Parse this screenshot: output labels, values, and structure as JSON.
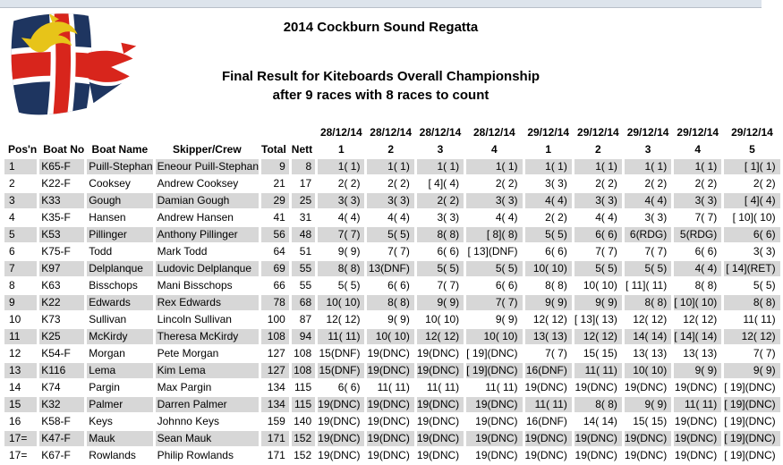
{
  "header": {
    "event_title": "2014 Cockburn Sound Regatta",
    "result_title": "Final Result for Kiteboards Overall Championship",
    "result_subtitle": "after 9 races with 8 races to count"
  },
  "colors": {
    "row_shade": "#d7d7d7",
    "topbar_bg": "#dde4ec",
    "topbar_border": "#b9c0c9",
    "flag_navy": "#1e3560",
    "flag_red": "#d8251c",
    "flag_yellow": "#e7c419"
  },
  "table": {
    "headers": {
      "posn": "Pos'n",
      "boat_no": "Boat No",
      "boat_name": "Boat Name",
      "skipper": "Skipper/Crew",
      "total": "Total",
      "nett": "Nett"
    },
    "race_headers": [
      {
        "date": "28/12/14",
        "race": "1"
      },
      {
        "date": "28/12/14",
        "race": "2"
      },
      {
        "date": "28/12/14",
        "race": "3"
      },
      {
        "date": "28/12/14",
        "race": "4"
      },
      {
        "date": "29/12/14",
        "race": "1"
      },
      {
        "date": "29/12/14",
        "race": "2"
      },
      {
        "date": "29/12/14",
        "race": "3"
      },
      {
        "date": "29/12/14",
        "race": "4"
      },
      {
        "date": "29/12/14",
        "race": "5"
      }
    ],
    "rows": [
      {
        "posn": "1",
        "boat_no": "K65-F",
        "boat_name": "Puill-Stephan",
        "skipper": "Eneour Puill-Stephan",
        "total": "9",
        "nett": "8",
        "races": [
          "1( 1)",
          "1( 1)",
          "1( 1)",
          "1( 1)",
          "1( 1)",
          "1( 1)",
          "1( 1)",
          "1( 1)",
          "[ 1]( 1)"
        ]
      },
      {
        "posn": "2",
        "boat_no": "K22-F",
        "boat_name": "Cooksey",
        "skipper": "Andrew Cooksey",
        "total": "21",
        "nett": "17",
        "races": [
          "2( 2)",
          "2( 2)",
          "[ 4]( 4)",
          "2( 2)",
          "3( 3)",
          "2( 2)",
          "2( 2)",
          "2( 2)",
          "2( 2)"
        ]
      },
      {
        "posn": "3",
        "boat_no": "K33",
        "boat_name": "Gough",
        "skipper": "Damian Gough",
        "total": "29",
        "nett": "25",
        "races": [
          "3( 3)",
          "3( 3)",
          "2( 2)",
          "3( 3)",
          "4( 4)",
          "3( 3)",
          "4( 4)",
          "3( 3)",
          "[ 4]( 4)"
        ]
      },
      {
        "posn": "4",
        "boat_no": "K35-F",
        "boat_name": "Hansen",
        "skipper": "Andrew Hansen",
        "total": "41",
        "nett": "31",
        "races": [
          "4( 4)",
          "4( 4)",
          "3( 3)",
          "4( 4)",
          "2( 2)",
          "4( 4)",
          "3( 3)",
          "7( 7)",
          "[ 10]( 10)"
        ]
      },
      {
        "posn": "5",
        "boat_no": "K53",
        "boat_name": "Pillinger",
        "skipper": "Anthony Pillinger",
        "total": "56",
        "nett": "48",
        "races": [
          "7( 7)",
          "5( 5)",
          "8( 8)",
          "[ 8]( 8)",
          "5( 5)",
          "6( 6)",
          "6(RDG)",
          "5(RDG)",
          "6( 6)"
        ]
      },
      {
        "posn": "6",
        "boat_no": "K75-F",
        "boat_name": "Todd",
        "skipper": "Mark Todd",
        "total": "64",
        "nett": "51",
        "races": [
          "9( 9)",
          "7( 7)",
          "6( 6)",
          "[ 13](DNF)",
          "6( 6)",
          "7( 7)",
          "7( 7)",
          "6( 6)",
          "3( 3)"
        ]
      },
      {
        "posn": "7",
        "boat_no": "K97",
        "boat_name": "Delplanque",
        "skipper": "Ludovic Delplanque",
        "total": "69",
        "nett": "55",
        "races": [
          "8( 8)",
          "13(DNF)",
          "5( 5)",
          "5( 5)",
          "10( 10)",
          "5( 5)",
          "5( 5)",
          "4( 4)",
          "[ 14](RET)"
        ]
      },
      {
        "posn": "8",
        "boat_no": "K63",
        "boat_name": "Bisschops",
        "skipper": "Mani Bisschops",
        "total": "66",
        "nett": "55",
        "races": [
          "5( 5)",
          "6( 6)",
          "7( 7)",
          "6( 6)",
          "8( 8)",
          "10( 10)",
          "[ 11]( 11)",
          "8( 8)",
          "5( 5)"
        ]
      },
      {
        "posn": "9",
        "boat_no": "K22",
        "boat_name": "Edwards",
        "skipper": "Rex Edwards",
        "total": "78",
        "nett": "68",
        "races": [
          "10( 10)",
          "8( 8)",
          "9( 9)",
          "7( 7)",
          "9( 9)",
          "9( 9)",
          "8( 8)",
          "[ 10]( 10)",
          "8( 8)"
        ]
      },
      {
        "posn": "10",
        "boat_no": "K73",
        "boat_name": "Sullivan",
        "skipper": "Lincoln Sullivan",
        "total": "100",
        "nett": "87",
        "races": [
          "12( 12)",
          "9( 9)",
          "10( 10)",
          "9( 9)",
          "12( 12)",
          "[ 13]( 13)",
          "12( 12)",
          "12( 12)",
          "11( 11)"
        ]
      },
      {
        "posn": "11",
        "boat_no": "K25",
        "boat_name": "McKirdy",
        "skipper": "Theresa McKirdy",
        "total": "108",
        "nett": "94",
        "races": [
          "11( 11)",
          "10( 10)",
          "12( 12)",
          "10( 10)",
          "13( 13)",
          "12( 12)",
          "14( 14)",
          "[ 14]( 14)",
          "12( 12)"
        ]
      },
      {
        "posn": "12",
        "boat_no": "K54-F",
        "boat_name": "Morgan",
        "skipper": "Pete Morgan",
        "total": "127",
        "nett": "108",
        "races": [
          "15(DNF)",
          "19(DNC)",
          "19(DNC)",
          "[ 19](DNC)",
          "7( 7)",
          "15( 15)",
          "13( 13)",
          "13( 13)",
          "7( 7)"
        ]
      },
      {
        "posn": "13",
        "boat_no": "K116",
        "boat_name": "Lema",
        "skipper": "Kim Lema",
        "total": "127",
        "nett": "108",
        "races": [
          "15(DNF)",
          "19(DNC)",
          "19(DNC)",
          "[ 19](DNC)",
          "16(DNF)",
          "11( 11)",
          "10( 10)",
          "9( 9)",
          "9( 9)"
        ]
      },
      {
        "posn": "14",
        "boat_no": "K74",
        "boat_name": "Pargin",
        "skipper": "Max Pargin",
        "total": "134",
        "nett": "115",
        "races": [
          "6( 6)",
          "11( 11)",
          "11( 11)",
          "11( 11)",
          "19(DNC)",
          "19(DNC)",
          "19(DNC)",
          "19(DNC)",
          "[ 19](DNC)"
        ]
      },
      {
        "posn": "15",
        "boat_no": "K32",
        "boat_name": "Palmer",
        "skipper": "Darren Palmer",
        "total": "134",
        "nett": "115",
        "races": [
          "19(DNC)",
          "19(DNC)",
          "19(DNC)",
          "19(DNC)",
          "11( 11)",
          "8( 8)",
          "9( 9)",
          "11( 11)",
          "[ 19](DNC)"
        ]
      },
      {
        "posn": "16",
        "boat_no": "K58-F",
        "boat_name": "Keys",
        "skipper": "Johnno Keys",
        "total": "159",
        "nett": "140",
        "races": [
          "19(DNC)",
          "19(DNC)",
          "19(DNC)",
          "19(DNC)",
          "16(DNF)",
          "14( 14)",
          "15( 15)",
          "19(DNC)",
          "[ 19](DNC)"
        ]
      },
      {
        "posn": "17=",
        "boat_no": "K47-F",
        "boat_name": "Mauk",
        "skipper": "Sean Mauk",
        "total": "171",
        "nett": "152",
        "races": [
          "19(DNC)",
          "19(DNC)",
          "19(DNC)",
          "19(DNC)",
          "19(DNC)",
          "19(DNC)",
          "19(DNC)",
          "19(DNC)",
          "[ 19](DNC)"
        ]
      },
      {
        "posn": "17=",
        "boat_no": "K67-F",
        "boat_name": "Rowlands",
        "skipper": "Philip Rowlands",
        "total": "171",
        "nett": "152",
        "races": [
          "19(DNC)",
          "19(DNC)",
          "19(DNC)",
          "19(DNC)",
          "19(DNC)",
          "19(DNC)",
          "19(DNC)",
          "19(DNC)",
          "[ 19](DNC)"
        ]
      }
    ]
  }
}
